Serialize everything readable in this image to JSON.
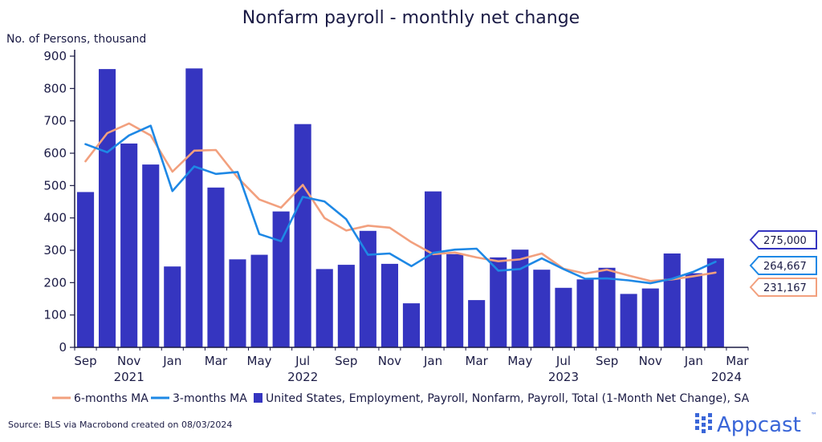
{
  "chart_data": {
    "type": "bar",
    "title": "Nonfarm payroll - monthly net change",
    "ylabel": "No. of Persons, thousand",
    "xlabel": "",
    "ylim": [
      0,
      900
    ],
    "yticks": [
      0,
      100,
      200,
      300,
      400,
      500,
      600,
      700,
      800,
      900
    ],
    "grid": false,
    "legend_position": "bottom",
    "months": [
      "Sep 2021",
      "Oct 2021",
      "Nov 2021",
      "Dec 2021",
      "Jan 2022",
      "Feb 2022",
      "Mar 2022",
      "Apr 2022",
      "May 2022",
      "Jun 2022",
      "Jul 2022",
      "Aug 2022",
      "Sep 2022",
      "Oct 2022",
      "Nov 2022",
      "Dec 2022",
      "Jan 2023",
      "Feb 2023",
      "Mar 2023",
      "Apr 2023",
      "May 2023",
      "Jun 2023",
      "Jul 2023",
      "Aug 2023",
      "Sep 2023",
      "Oct 2023",
      "Nov 2023",
      "Dec 2023",
      "Jan 2024",
      "Feb 2024"
    ],
    "x_tick_labels": [
      {
        "month_index": 0,
        "label": "Sep"
      },
      {
        "month_index": 2,
        "label": "Nov"
      },
      {
        "month_index": 4,
        "label": "Jan"
      },
      {
        "month_index": 6,
        "label": "Mar"
      },
      {
        "month_index": 8,
        "label": "May"
      },
      {
        "month_index": 10,
        "label": "Jul"
      },
      {
        "month_index": 12,
        "label": "Sep"
      },
      {
        "month_index": 14,
        "label": "Nov"
      },
      {
        "month_index": 16,
        "label": "Jan"
      },
      {
        "month_index": 18,
        "label": "Mar"
      },
      {
        "month_index": 20,
        "label": "May"
      },
      {
        "month_index": 22,
        "label": "Jul"
      },
      {
        "month_index": 24,
        "label": "Sep"
      },
      {
        "month_index": 26,
        "label": "Nov"
      },
      {
        "month_index": 28,
        "label": "Jan"
      },
      {
        "month_index": 30,
        "label": "Mar"
      }
    ],
    "year_labels": [
      {
        "month_index": 2,
        "label": "2021"
      },
      {
        "month_index": 10,
        "label": "2022"
      },
      {
        "month_index": 22,
        "label": "2023"
      },
      {
        "month_index": 29.5,
        "label": "2024"
      }
    ],
    "series": [
      {
        "name": "United States, Employment, Payroll, Nonfarm, Payroll, Total (1-Month Net Change), SA",
        "type": "bar",
        "color": "#3535c0",
        "values": [
          480,
          860,
          630,
          565,
          250,
          862,
          494,
          272,
          286,
          420,
          690,
          242,
          255,
          360,
          258,
          136,
          482,
          288,
          146,
          278,
          302,
          240,
          184,
          210,
          246,
          165,
          182,
          290,
          229,
          275
        ]
      },
      {
        "name": "6-months MA",
        "type": "line",
        "color": "#f2a07e",
        "values": [
          575,
          662,
          692,
          655,
          543,
          608,
          610,
          525,
          457,
          432,
          502,
          400,
          361,
          376,
          370,
          325,
          288,
          293,
          278,
          266,
          272,
          290,
          243,
          228,
          240,
          222,
          205,
          210,
          220,
          231.167
        ]
      },
      {
        "name": "3-months MA",
        "type": "line",
        "color": "#1e88e5",
        "values": [
          628,
          603,
          655,
          685,
          483,
          559,
          536,
          542,
          350,
          328,
          465,
          451,
          396,
          286,
          290,
          251,
          292,
          302,
          305,
          237,
          242,
          275,
          242,
          212,
          213,
          207,
          198,
          212,
          234,
          264.667
        ]
      }
    ],
    "callouts": [
      {
        "label": "275,000",
        "series": "bars",
        "color": "#3535c0"
      },
      {
        "label": "264,667",
        "series": "3-months MA",
        "color": "#1e88e5"
      },
      {
        "label": "231,167",
        "series": "6-months MA",
        "color": "#f2a07e"
      }
    ]
  },
  "legend": {
    "ma6": "6-months MA",
    "ma3": "3-months MA",
    "bars": "United States, Employment, Payroll, Nonfarm, Payroll, Total (1-Month Net Change), SA"
  },
  "footer": {
    "source": "Source: BLS via Macrobond created on 08/03/2024",
    "brand": "Appcast",
    "brand_mark": "™"
  },
  "colors": {
    "bar": "#3535c0",
    "ma6": "#f2a07e",
    "ma3": "#1e88e5",
    "text": "#1b1b45",
    "brand": "#3a66d8"
  }
}
